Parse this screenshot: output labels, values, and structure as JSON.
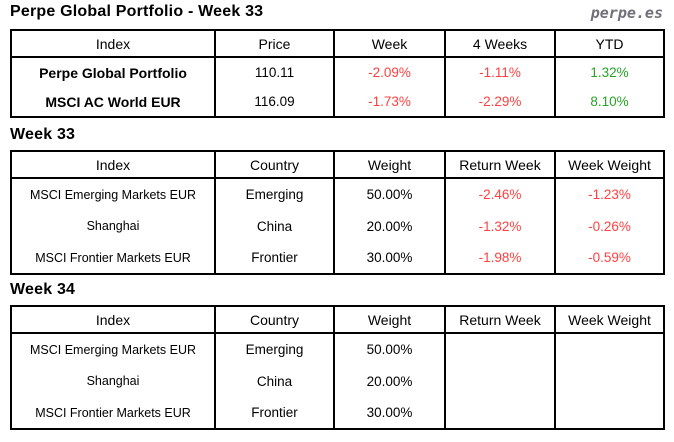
{
  "header": {
    "title": "Perpe Global Portfolio - Week 33",
    "logo": "perpe.es"
  },
  "colors": {
    "negative": "#FF4040",
    "positive": "#28A228",
    "logo_text": "#70707A"
  },
  "summary_table": {
    "headers": [
      "Index",
      "Price",
      "Week",
      "4 Weeks",
      "YTD"
    ],
    "rows": [
      {
        "index": "Perpe Global Portfolio",
        "price": "110.11",
        "week": "-2.09%",
        "four_weeks": "-1.11%",
        "ytd": "1.32%"
      },
      {
        "index": "MSCI AC World EUR",
        "price": "116.09",
        "week": "-1.73%",
        "four_weeks": "-2.29%",
        "ytd": "8.10%"
      }
    ]
  },
  "sections": [
    {
      "heading": "Week 33",
      "table": {
        "headers": [
          "Index",
          "Country",
          "Weight",
          "Return Week",
          "Week Weight"
        ],
        "rows": [
          {
            "index": "MSCI Emerging Markets EUR",
            "country": "Emerging",
            "weight": "50.00%",
            "return_week": "-2.46%",
            "week_weight": "-1.23%"
          },
          {
            "index": "Shanghai",
            "country": "China",
            "weight": "20.00%",
            "return_week": "-1.32%",
            "week_weight": "-0.26%"
          },
          {
            "index": "MSCI Frontier Markets EUR",
            "country": "Frontier",
            "weight": "30.00%",
            "return_week": "-1.98%",
            "week_weight": "-0.59%"
          }
        ]
      }
    },
    {
      "heading": "Week 34",
      "table": {
        "headers": [
          "Index",
          "Country",
          "Weight",
          "Return Week",
          "Week Weight"
        ],
        "rows": [
          {
            "index": "MSCI Emerging Markets EUR",
            "country": "Emerging",
            "weight": "50.00%",
            "return_week": "",
            "week_weight": ""
          },
          {
            "index": "Shanghai",
            "country": "China",
            "weight": "20.00%",
            "return_week": "",
            "week_weight": ""
          },
          {
            "index": "MSCI Frontier Markets EUR",
            "country": "Frontier",
            "weight": "30.00%",
            "return_week": "",
            "week_weight": ""
          }
        ]
      }
    }
  ]
}
